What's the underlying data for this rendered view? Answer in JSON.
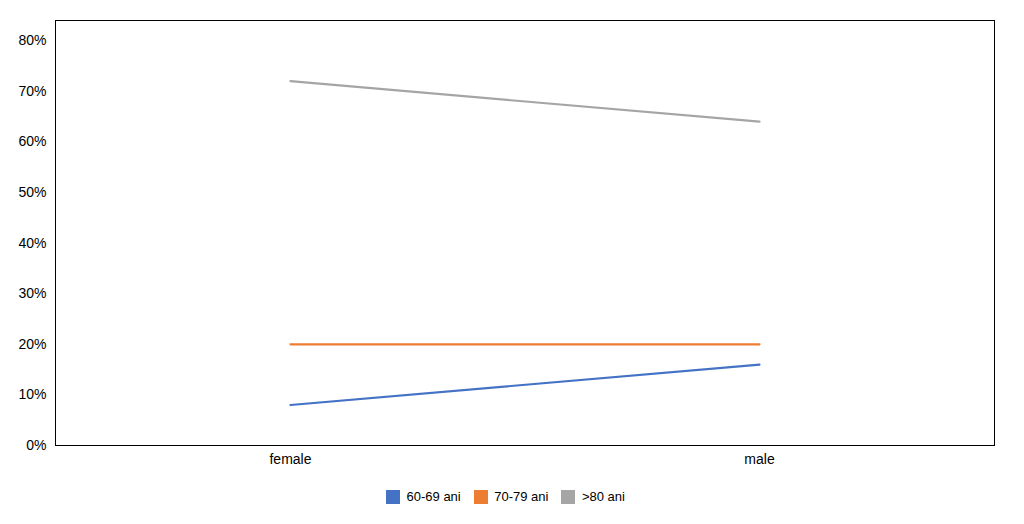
{
  "chart_data": {
    "type": "line",
    "categories": [
      "female",
      "male"
    ],
    "series": [
      {
        "name": "60-69 ani",
        "color": "#4472C4",
        "values": [
          0.08,
          0.16
        ]
      },
      {
        "name": "70-79 ani",
        "color": "#ED7D31",
        "values": [
          0.2,
          0.2
        ]
      },
      {
        "name": ">80 ani",
        "color": "#A5A5A5",
        "values": [
          0.72,
          0.64
        ]
      }
    ],
    "ylim": [
      0,
      0.84
    ],
    "yticks": [
      {
        "value": 0.0,
        "label": "0%"
      },
      {
        "value": 0.1,
        "label": "10%"
      },
      {
        "value": 0.2,
        "label": "20%"
      },
      {
        "value": 0.3,
        "label": "30%"
      },
      {
        "value": 0.4,
        "label": "40%"
      },
      {
        "value": 0.5,
        "label": "50%"
      },
      {
        "value": 0.6,
        "label": "60%"
      },
      {
        "value": 0.7,
        "label": "70%"
      },
      {
        "value": 0.8,
        "label": "80%"
      }
    ],
    "grid": false,
    "legend": "bottom"
  }
}
